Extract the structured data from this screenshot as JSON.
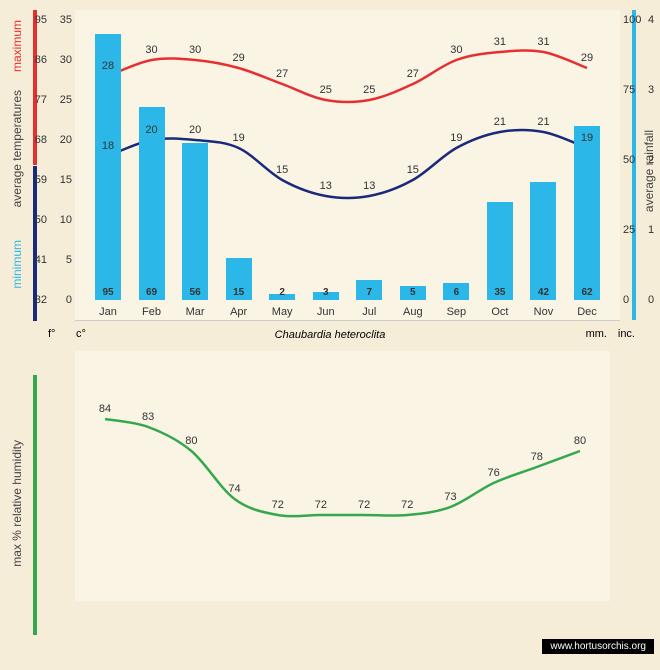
{
  "species": "Chaubardia heteroclita",
  "site": "www.hortusorchis.org",
  "months": [
    "Jan",
    "Feb",
    "Mar",
    "Apr",
    "May",
    "Jun",
    "Jul",
    "Aug",
    "Sep",
    "Oct",
    "Nov",
    "Dec"
  ],
  "tmax": [
    28,
    30,
    30,
    29,
    27,
    25,
    25,
    27,
    30,
    31,
    31,
    29
  ],
  "tmin": [
    18,
    20,
    20,
    19,
    15,
    13,
    13,
    15,
    19,
    21,
    21,
    19
  ],
  "rain": [
    95,
    69,
    56,
    15,
    2,
    3,
    7,
    5,
    6,
    35,
    42,
    62
  ],
  "humidity": [
    84,
    83,
    80,
    74,
    72,
    72,
    72,
    72,
    73,
    76,
    78,
    80
  ],
  "c_ticks": [
    0,
    5,
    10,
    15,
    20,
    25,
    30,
    35
  ],
  "f_ticks": [
    32,
    41,
    50,
    59,
    68,
    77,
    86,
    95
  ],
  "mm_ticks": [
    0,
    25,
    50,
    75,
    100
  ],
  "in_ticks": [
    0,
    1,
    2,
    3,
    4
  ],
  "units": {
    "f": "f°",
    "c": "c°",
    "mm": "mm.",
    "in": "inc."
  },
  "labels": {
    "min": "minimum",
    "avg": "average temperatures",
    "max": "maximum",
    "rain": "average rainfall",
    "hum": "max % relative humidity"
  },
  "colors": {
    "bar": "#2bb8e8",
    "max": "#e63030",
    "min": "#1a2a7a",
    "hum": "#35a84d",
    "bg": "#faf4e5",
    "page": "#f5edd8"
  }
}
